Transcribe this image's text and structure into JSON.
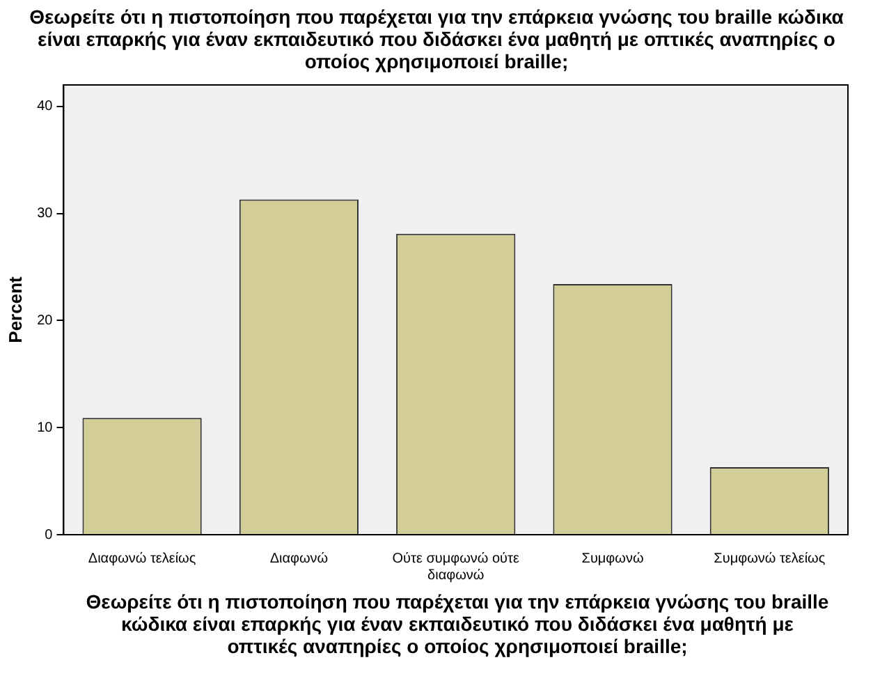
{
  "chart_data": {
    "type": "bar",
    "title": "Θεωρείτε ότι η πιστοποίηση που παρέχεται για την επάρκεια γνώσης του braille κώδικα είναι επαρκής για έναν εκπαιδευτικό που διδάσκει ένα μαθητή με οπτικές αναπηρίες ο οποίος χρησιμοποιεί braille;",
    "xlabel": "Θεωρείτε ότι η πιστοποίηση που παρέχεται για την επάρκεια γνώσης του braille κώδικα είναι επαρκής για έναν εκπαιδευτικό που διδάσκει ένα μαθητή με οπτικές αναπηρίες ο οποίος χρησιμοποιεί braille;",
    "ylabel": "Percent",
    "categories": [
      "Διαφωνώ τελείως",
      "Διαφωνώ",
      "Ούτε συμφωνώ ούτε διαφωνώ",
      "Συμφωνώ",
      "Συμφωνώ τελείως"
    ],
    "values": [
      10.9,
      31.3,
      28.1,
      23.4,
      6.3
    ],
    "color": "#d3ce97",
    "ylim": [
      0,
      42
    ],
    "yticks": [
      0,
      10,
      20,
      30,
      40
    ],
    "grid": false,
    "legend": false
  }
}
